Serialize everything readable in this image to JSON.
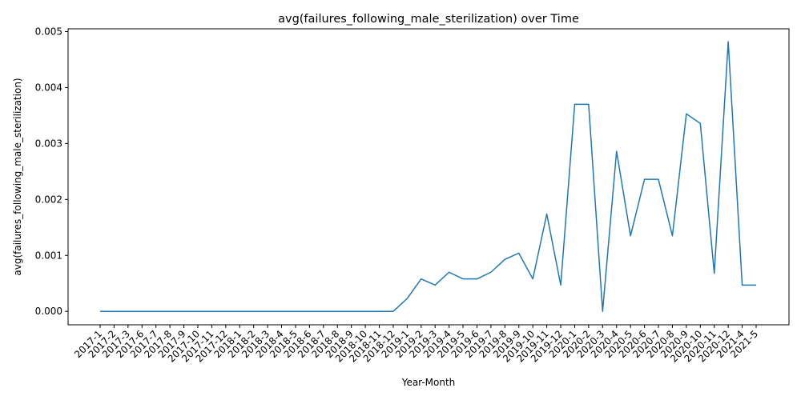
{
  "chart_data": {
    "type": "line",
    "title": "avg(failures_following_male_sterilization) over Time",
    "xlabel": "Year-Month",
    "ylabel": "avg(failures_following_male_sterilization)",
    "ylim": [
      -0.00024,
      0.00505
    ],
    "yticks": [
      0.0,
      0.001,
      0.002,
      0.003,
      0.004,
      0.005
    ],
    "ytick_labels": [
      "0.000",
      "0.001",
      "0.002",
      "0.003",
      "0.004",
      "0.005"
    ],
    "grid": false,
    "line_color": "#1f77b4",
    "x": [
      "2017-1",
      "2017-2",
      "2017-3",
      "2017-6",
      "2017-7",
      "2017-8",
      "2017-9",
      "2017-10",
      "2017-11",
      "2017-12",
      "2018-1",
      "2018-2",
      "2018-3",
      "2018-4",
      "2018-5",
      "2018-6",
      "2018-7",
      "2018-8",
      "2018-9",
      "2018-10",
      "2018-11",
      "2018-12",
      "2019-1",
      "2019-2",
      "2019-3",
      "2019-4",
      "2019-5",
      "2019-6",
      "2019-7",
      "2019-8",
      "2019-9",
      "2019-10",
      "2019-11",
      "2019-12",
      "2020-1",
      "2020-2",
      "2020-3",
      "2020-4",
      "2020-5",
      "2020-6",
      "2020-7",
      "2020-8",
      "2020-9",
      "2020-10",
      "2020-11",
      "2020-12",
      "2021-4",
      "2021-5"
    ],
    "values": [
      0,
      0,
      0,
      0,
      0,
      0,
      0,
      0,
      0,
      0,
      0,
      0,
      0,
      0,
      0,
      0,
      0,
      0,
      0,
      0,
      0,
      0,
      0.00023,
      0.00058,
      0.00047,
      0.0007,
      0.00058,
      0.00058,
      0.0007,
      0.00093,
      0.00104,
      0.00058,
      0.00174,
      0.00047,
      0.0037,
      0.0037,
      0.0,
      0.00286,
      0.00135,
      0.00236,
      0.00236,
      0.00135,
      0.00353,
      0.00336,
      0.00068,
      0.00482,
      0.00047,
      0.00047
    ]
  }
}
